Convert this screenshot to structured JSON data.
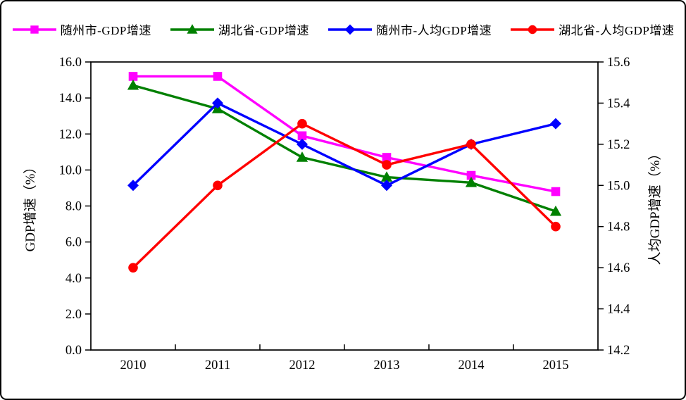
{
  "figure": {
    "background_color": "#ffffff",
    "border_color": "#000000"
  },
  "chart_data": {
    "type": "line",
    "title": "",
    "categories": [
      "2010",
      "2011",
      "2012",
      "2013",
      "2014",
      "2015"
    ],
    "series": [
      {
        "name": "随州市-GDP增速",
        "axis": "left",
        "color": "#ff00ff",
        "marker": "square",
        "values": [
          15.2,
          15.2,
          11.9,
          10.7,
          9.7,
          8.8
        ]
      },
      {
        "name": "湖北省-GDP增速",
        "axis": "left",
        "color": "#008000",
        "marker": "triangle",
        "values": [
          14.7,
          13.4,
          10.7,
          9.6,
          9.3,
          7.7
        ]
      },
      {
        "name": "随州市-人均GDP增速",
        "axis": "right",
        "color": "#0000ff",
        "marker": "diamond",
        "values": [
          15.0,
          15.4,
          15.2,
          15.0,
          15.2,
          15.3
        ]
      },
      {
        "name": "湖北省-人均GDP增速",
        "axis": "right",
        "color": "#ff0000",
        "marker": "circle",
        "values": [
          14.6,
          15.0,
          15.3,
          15.1,
          15.2,
          14.8
        ]
      }
    ],
    "left_axis": {
      "title": "GDP增速（%）",
      "min": 0,
      "max": 16,
      "step": 2,
      "tick_labels": [
        "0.0",
        "2.0",
        "4.0",
        "6.0",
        "8.0",
        "10.0",
        "12.0",
        "14.0",
        "16.0"
      ]
    },
    "right_axis": {
      "title": "人均GDP增速（%）",
      "min": 14.2,
      "max": 15.6,
      "step": 0.2,
      "tick_labels": [
        "14.2",
        "14.4",
        "14.6",
        "14.8",
        "15.0",
        "15.2",
        "15.4",
        "15.6"
      ]
    },
    "grid": false,
    "legend_position": "top",
    "axis_color": "#000000"
  }
}
